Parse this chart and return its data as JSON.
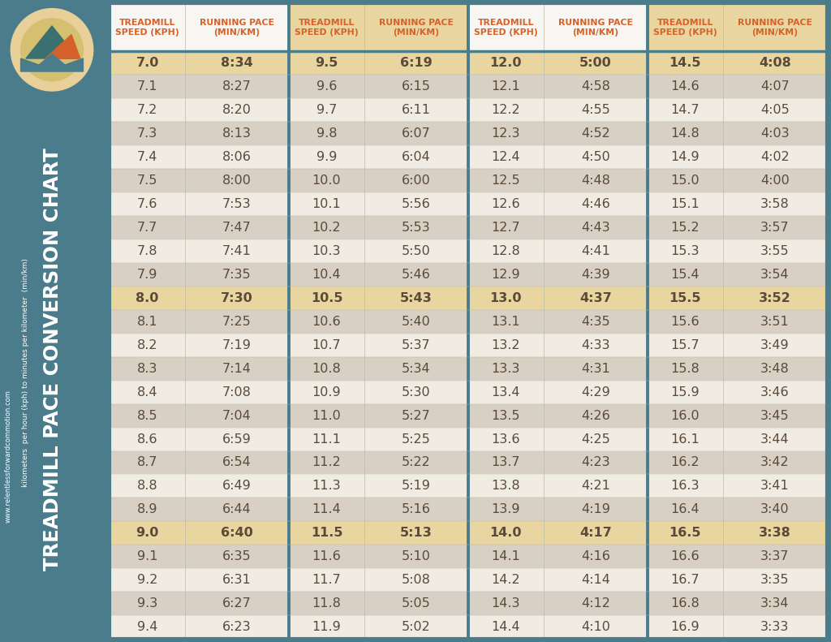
{
  "title": "TREADMILL PACE CONVERSION CHART",
  "subtitle1": "kilometers  per hour (kph) to minutes per kilometer  (min/km)",
  "subtitle2": "www.relentlessforwardcommotion.com",
  "col_headers": [
    "TREADMILL\nSPEED (KPH)",
    "RUNNING PACE\n(MIN/KM)",
    "TREADMILL\nSPEED (KPH)",
    "RUNNING PACE\n(MIN/KM)",
    "TREADMILL\nSPEED (KPH)",
    "RUNNING PACE\n(MIN/KM)",
    "TREADMILL\nSPEED (KPH)",
    "RUNNING PACE\n(MIN/KM)"
  ],
  "data": [
    [
      "7.0",
      "8:34",
      "9.5",
      "6:19",
      "12.0",
      "5:00",
      "14.5",
      "4:08"
    ],
    [
      "7.1",
      "8:27",
      "9.6",
      "6:15",
      "12.1",
      "4:58",
      "14.6",
      "4:07"
    ],
    [
      "7.2",
      "8:20",
      "9.7",
      "6:11",
      "12.2",
      "4:55",
      "14.7",
      "4:05"
    ],
    [
      "7.3",
      "8:13",
      "9.8",
      "6:07",
      "12.3",
      "4:52",
      "14.8",
      "4:03"
    ],
    [
      "7.4",
      "8:06",
      "9.9",
      "6:04",
      "12.4",
      "4:50",
      "14.9",
      "4:02"
    ],
    [
      "7.5",
      "8:00",
      "10.0",
      "6:00",
      "12.5",
      "4:48",
      "15.0",
      "4:00"
    ],
    [
      "7.6",
      "7:53",
      "10.1",
      "5:56",
      "12.6",
      "4:46",
      "15.1",
      "3:58"
    ],
    [
      "7.7",
      "7:47",
      "10.2",
      "5:53",
      "12.7",
      "4:43",
      "15.2",
      "3:57"
    ],
    [
      "7.8",
      "7:41",
      "10.3",
      "5:50",
      "12.8",
      "4:41",
      "15.3",
      "3:55"
    ],
    [
      "7.9",
      "7:35",
      "10.4",
      "5:46",
      "12.9",
      "4:39",
      "15.4",
      "3:54"
    ],
    [
      "8.0",
      "7:30",
      "10.5",
      "5:43",
      "13.0",
      "4:37",
      "15.5",
      "3:52"
    ],
    [
      "8.1",
      "7:25",
      "10.6",
      "5:40",
      "13.1",
      "4:35",
      "15.6",
      "3:51"
    ],
    [
      "8.2",
      "7:19",
      "10.7",
      "5:37",
      "13.2",
      "4:33",
      "15.7",
      "3:49"
    ],
    [
      "8.3",
      "7:14",
      "10.8",
      "5:34",
      "13.3",
      "4:31",
      "15.8",
      "3:48"
    ],
    [
      "8.4",
      "7:08",
      "10.9",
      "5:30",
      "13.4",
      "4:29",
      "15.9",
      "3:46"
    ],
    [
      "8.5",
      "7:04",
      "11.0",
      "5:27",
      "13.5",
      "4:26",
      "16.0",
      "3:45"
    ],
    [
      "8.6",
      "6:59",
      "11.1",
      "5:25",
      "13.6",
      "4:25",
      "16.1",
      "3:44"
    ],
    [
      "8.7",
      "6:54",
      "11.2",
      "5:22",
      "13.7",
      "4:23",
      "16.2",
      "3:42"
    ],
    [
      "8.8",
      "6:49",
      "11.3",
      "5:19",
      "13.8",
      "4:21",
      "16.3",
      "3:41"
    ],
    [
      "8.9",
      "6:44",
      "11.4",
      "5:16",
      "13.9",
      "4:19",
      "16.4",
      "3:40"
    ],
    [
      "9.0",
      "6:40",
      "11.5",
      "5:13",
      "14.0",
      "4:17",
      "16.5",
      "3:38"
    ],
    [
      "9.1",
      "6:35",
      "11.6",
      "5:10",
      "14.1",
      "4:16",
      "16.6",
      "3:37"
    ],
    [
      "9.2",
      "6:31",
      "11.7",
      "5:08",
      "14.2",
      "4:14",
      "16.7",
      "3:35"
    ],
    [
      "9.3",
      "6:27",
      "11.8",
      "5:05",
      "14.3",
      "4:12",
      "16.8",
      "3:34"
    ],
    [
      "9.4",
      "6:23",
      "11.9",
      "5:02",
      "14.4",
      "4:10",
      "16.9",
      "3:33"
    ]
  ],
  "highlight_rows": [
    0,
    10,
    20
  ],
  "bg_color": "#4a7c8c",
  "table_bg": "#f8f6f2",
  "header_text_color": "#d4622a",
  "highlight_color": "#e8d5a0",
  "row_odd_color": "#d8d0c4",
  "row_even_color": "#f0ece4",
  "cell_text_color": "#5a4a3a",
  "title_color": "#ffffff",
  "divider_color": "#4a7c8c",
  "group_border_color": "#4a7c8c",
  "header_plain_bg": "#f8f6f2",
  "header_highlight_bg": "#e8d5a0"
}
